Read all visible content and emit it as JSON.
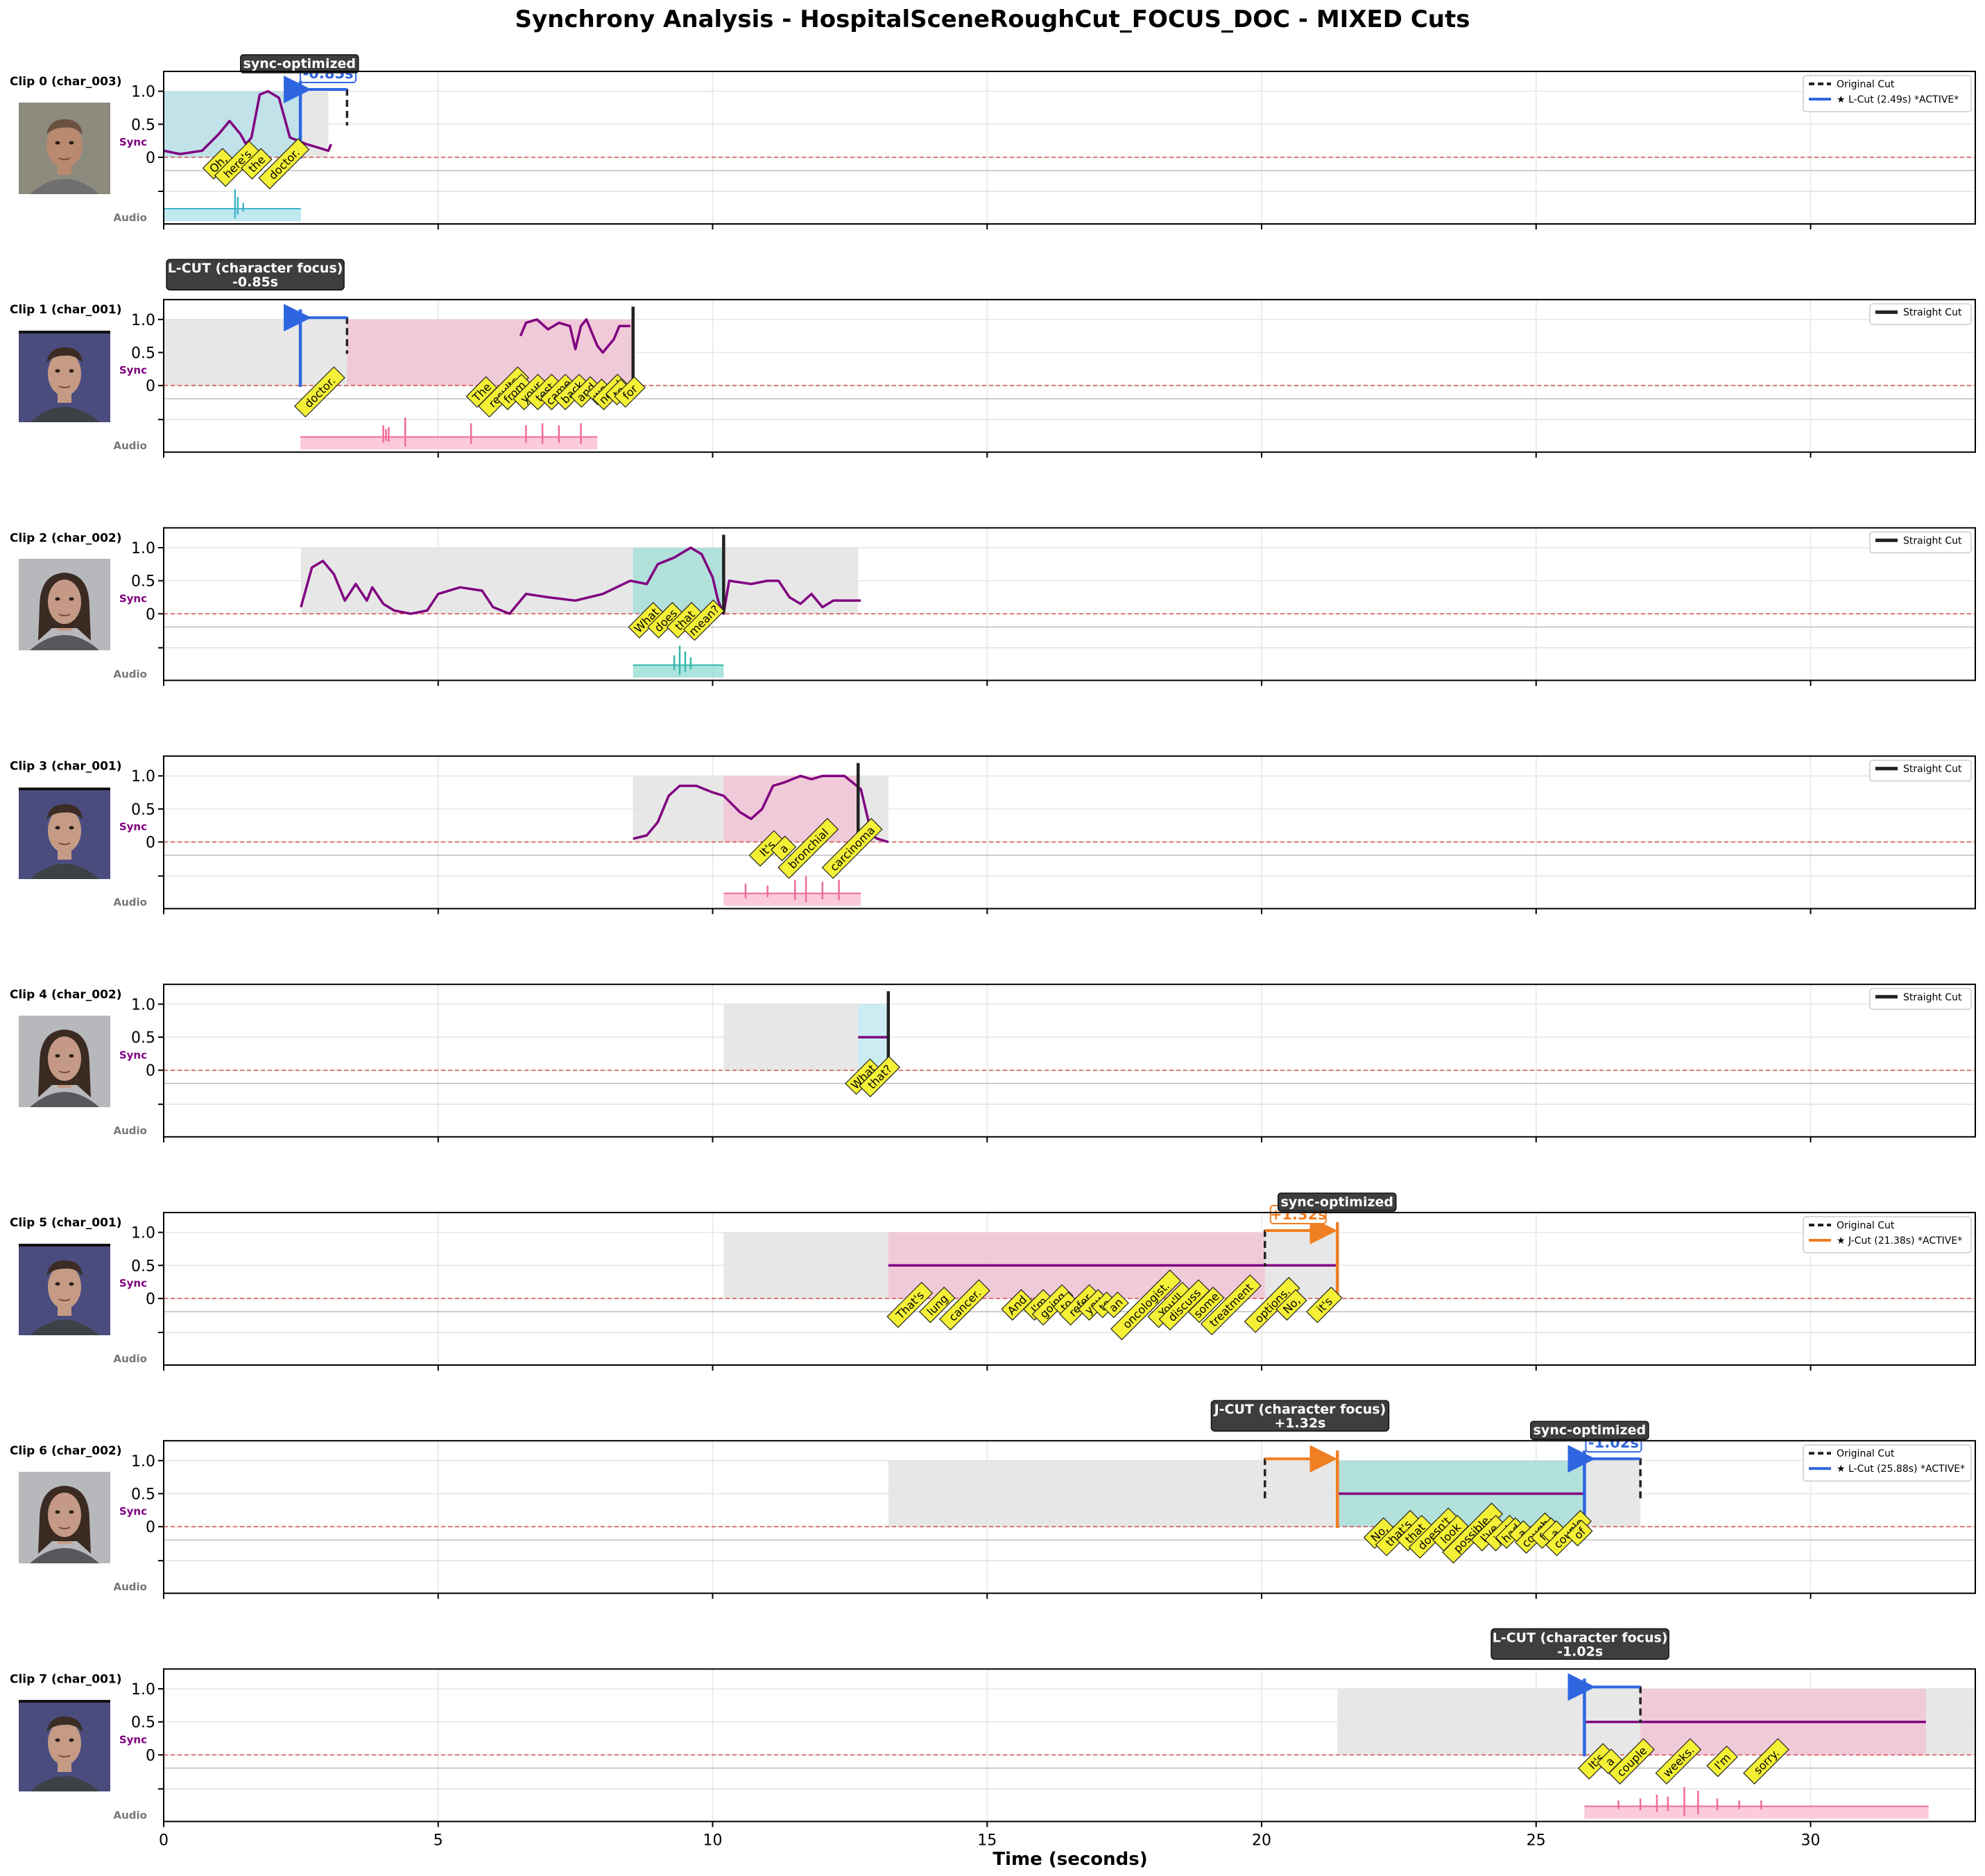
{
  "title": "Synchrony Analysis - HospitalSceneRoughCut_FOCUS_DOC - MIXED Cuts",
  "colors": {
    "sync_line": "#800080",
    "zero_line": "#d62728",
    "cyan_fill": "#a9e0ea",
    "teal_fill": "#8fdcd3",
    "pink_fill": "#f9b8d0",
    "gray_fill": "#e3e3e3",
    "lcut_blue": "#2f66e0",
    "jcut_orange": "#f07f24",
    "cut_black": "#222222",
    "word_fill": "#f4f036",
    "annot_bg": "#3e3e3e"
  },
  "chart_data": {
    "type": "line",
    "xlabel": "Time (seconds)",
    "xlim": [
      0,
      33
    ],
    "x_ticks": [
      0,
      5,
      10,
      15,
      20,
      25,
      30
    ],
    "sync_ylim": [
      -0.2,
      1.3
    ],
    "sync_yticks": [
      "0",
      "0.5",
      "1.0"
    ],
    "sync_tick_values": [
      0,
      0.5,
      1.0
    ],
    "row_label_sync": "Sync",
    "row_label_audio": "Audio",
    "clips": [
      {
        "label": "Clip 0 (char_003)",
        "face": "man",
        "gray_range": [
          0,
          3.0
        ],
        "speech_range": [
          0,
          2.5
        ],
        "speech_color": "cyan",
        "audio_range": [
          0,
          2.5
        ],
        "audio_color": "cyan",
        "audio_spikes": [
          [
            1.3,
            1.0
          ],
          [
            1.35,
            0.6
          ],
          [
            1.45,
            0.3
          ]
        ],
        "sync_curve": [
          [
            0,
            0.1
          ],
          [
            0.3,
            0.05
          ],
          [
            0.7,
            0.1
          ],
          [
            1.0,
            0.35
          ],
          [
            1.2,
            0.55
          ],
          [
            1.4,
            0.35
          ],
          [
            1.5,
            0.2
          ],
          [
            1.6,
            0.3
          ],
          [
            1.75,
            0.95
          ],
          [
            1.9,
            1.0
          ],
          [
            2.1,
            0.9
          ],
          [
            2.3,
            0.3
          ],
          [
            2.6,
            0.2
          ],
          [
            2.8,
            0.15
          ],
          [
            3.0,
            0.1
          ],
          [
            3.05,
            0.2
          ]
        ],
        "cuts": [
          {
            "kind": "original",
            "t": 3.34
          },
          {
            "kind": "lcut",
            "t": 2.49
          }
        ],
        "shift_label": "-0.85s",
        "shift_dir": "left",
        "sync_badge": "sync-optimized",
        "above_box": null,
        "legend": [
          "Original Cut",
          "★ L-Cut (2.49s) *ACTIVE*"
        ],
        "words": [
          [
            "Oh,",
            1.0
          ],
          [
            "here's",
            1.35
          ],
          [
            "the",
            1.7
          ],
          [
            "doctor.",
            2.2
          ]
        ]
      },
      {
        "label": "Clip 1 (char_001)",
        "face": "young-man",
        "gray_range": [
          0,
          8.55
        ],
        "speech_range": [
          3.34,
          8.55
        ],
        "speech_color": "pink",
        "audio_range": [
          2.49,
          7.9
        ],
        "audio_color": "pink",
        "audio_spikes": [
          [
            4.0,
            0.6
          ],
          [
            4.05,
            0.4
          ],
          [
            4.1,
            0.5
          ],
          [
            4.4,
            1.0
          ],
          [
            5.6,
            0.7
          ],
          [
            6.6,
            0.6
          ],
          [
            6.9,
            0.7
          ],
          [
            7.2,
            0.6
          ],
          [
            7.6,
            0.7
          ]
        ],
        "sync_curve": [
          [
            6.5,
            0.75
          ],
          [
            6.6,
            0.95
          ],
          [
            6.8,
            1.0
          ],
          [
            7.0,
            0.85
          ],
          [
            7.2,
            0.95
          ],
          [
            7.4,
            0.9
          ],
          [
            7.5,
            0.55
          ],
          [
            7.6,
            0.9
          ],
          [
            7.7,
            1.0
          ],
          [
            7.9,
            0.6
          ],
          [
            8.0,
            0.5
          ],
          [
            8.2,
            0.7
          ],
          [
            8.3,
            0.9
          ],
          [
            8.5,
            0.9
          ]
        ],
        "cuts": [
          {
            "kind": "lcut",
            "t": 2.49
          },
          {
            "kind": "original",
            "t": 3.34
          },
          {
            "kind": "straight",
            "t": 8.55
          }
        ],
        "shift_label": null,
        "sync_badge": null,
        "above_box": {
          "line1": "L-CUT (character focus)",
          "line2": "-0.85s",
          "t": 2.49
        },
        "legend": [
          "Straight Cut"
        ],
        "words": [
          [
            "doctor.",
            2.85
          ],
          [
            "The",
            5.8
          ],
          [
            "results",
            6.2
          ],
          [
            "from",
            6.4
          ],
          [
            "your",
            6.7
          ],
          [
            "test",
            6.95
          ],
          [
            "came",
            7.2
          ],
          [
            "back",
            7.45
          ],
          [
            "and",
            7.7
          ],
          [
            "we",
            7.95
          ],
          [
            "need",
            8.15
          ],
          [
            "to",
            8.3
          ],
          [
            "for",
            8.5
          ]
        ]
      },
      {
        "label": "Clip 2 (char_002)",
        "face": "woman",
        "gray_range": [
          2.5,
          12.65
        ],
        "speech_range": [
          8.55,
          10.2
        ],
        "speech_color": "teal",
        "audio_range": [
          8.55,
          10.2
        ],
        "audio_color": "teal",
        "audio_spikes": [
          [
            9.3,
            0.5
          ],
          [
            9.4,
            1.0
          ],
          [
            9.5,
            0.7
          ],
          [
            9.6,
            0.4
          ]
        ],
        "sync_curve": [
          [
            2.5,
            0.1
          ],
          [
            2.7,
            0.7
          ],
          [
            2.9,
            0.8
          ],
          [
            3.1,
            0.6
          ],
          [
            3.3,
            0.2
          ],
          [
            3.5,
            0.45
          ],
          [
            3.7,
            0.2
          ],
          [
            3.8,
            0.4
          ],
          [
            4.0,
            0.15
          ],
          [
            4.2,
            0.05
          ],
          [
            4.5,
            0.0
          ],
          [
            4.8,
            0.05
          ],
          [
            5.0,
            0.3
          ],
          [
            5.4,
            0.4
          ],
          [
            5.8,
            0.35
          ],
          [
            6.0,
            0.1
          ],
          [
            6.3,
            0.0
          ],
          [
            6.6,
            0.3
          ],
          [
            7.0,
            0.25
          ],
          [
            7.5,
            0.2
          ],
          [
            8.0,
            0.3
          ],
          [
            8.5,
            0.5
          ],
          [
            8.8,
            0.45
          ],
          [
            9.0,
            0.75
          ],
          [
            9.3,
            0.85
          ],
          [
            9.6,
            1.0
          ],
          [
            9.8,
            0.9
          ],
          [
            10.0,
            0.55
          ],
          [
            10.1,
            0.2
          ],
          [
            10.2,
            0.0
          ],
          [
            10.3,
            0.5
          ],
          [
            10.7,
            0.45
          ],
          [
            11.0,
            0.5
          ],
          [
            11.2,
            0.5
          ],
          [
            11.4,
            0.25
          ],
          [
            11.6,
            0.15
          ],
          [
            11.8,
            0.3
          ],
          [
            12.0,
            0.1
          ],
          [
            12.2,
            0.2
          ],
          [
            12.5,
            0.2
          ],
          [
            12.7,
            0.2
          ]
        ],
        "cuts": [
          {
            "kind": "straight",
            "t": 10.2
          }
        ],
        "shift_label": null,
        "sync_badge": null,
        "above_box": null,
        "legend": [
          "Straight Cut"
        ],
        "words": [
          [
            "What",
            8.8
          ],
          [
            "does",
            9.15
          ],
          [
            "that",
            9.5
          ],
          [
            "mean?",
            9.85
          ]
        ]
      },
      {
        "label": "Clip 3 (char_001)",
        "face": "young-man",
        "gray_range": [
          8.55,
          13.2
        ],
        "speech_range": [
          10.2,
          12.65
        ],
        "speech_color": "pink",
        "audio_range": [
          10.2,
          12.7
        ],
        "audio_color": "pink",
        "audio_spikes": [
          [
            10.6,
            0.5
          ],
          [
            11.0,
            0.4
          ],
          [
            11.5,
            0.7
          ],
          [
            11.7,
            0.9
          ],
          [
            12.0,
            0.6
          ],
          [
            12.3,
            0.7
          ]
        ],
        "sync_curve": [
          [
            8.55,
            0.05
          ],
          [
            8.8,
            0.1
          ],
          [
            9.0,
            0.3
          ],
          [
            9.2,
            0.7
          ],
          [
            9.4,
            0.85
          ],
          [
            9.7,
            0.85
          ],
          [
            10.0,
            0.75
          ],
          [
            10.2,
            0.7
          ],
          [
            10.5,
            0.45
          ],
          [
            10.7,
            0.35
          ],
          [
            10.9,
            0.5
          ],
          [
            11.1,
            0.85
          ],
          [
            11.3,
            0.9
          ],
          [
            11.6,
            1.0
          ],
          [
            11.8,
            0.95
          ],
          [
            12.0,
            1.0
          ],
          [
            12.4,
            1.0
          ],
          [
            12.7,
            0.8
          ],
          [
            12.9,
            0.1
          ],
          [
            13.0,
            0.05
          ],
          [
            13.2,
            0.0
          ]
        ],
        "cuts": [
          {
            "kind": "straight",
            "t": 12.65
          }
        ],
        "shift_label": null,
        "sync_badge": null,
        "above_box": null,
        "legend": [
          "Straight Cut"
        ],
        "words": [
          [
            "It's",
            11.0
          ],
          [
            "a",
            11.3
          ],
          [
            "bronchial",
            11.75
          ],
          [
            "carcinoma",
            12.55
          ]
        ]
      },
      {
        "label": "Clip 4 (char_002)",
        "face": "woman",
        "gray_range": [
          10.2,
          12.65
        ],
        "speech_range": [
          12.65,
          13.2
        ],
        "speech_color": "cyan",
        "audio_range": null,
        "audio_color": null,
        "audio_spikes": [],
        "sync_curve": [
          [
            12.65,
            0.5
          ],
          [
            13.2,
            0.5
          ]
        ],
        "cuts": [
          {
            "kind": "straight",
            "t": 13.2
          }
        ],
        "shift_label": null,
        "sync_badge": null,
        "above_box": null,
        "legend": [
          "Straight Cut"
        ],
        "words": [
          [
            "What",
            12.75
          ],
          [
            "that?",
            13.05
          ]
        ]
      },
      {
        "label": "Clip 5 (char_001)",
        "face": "young-man",
        "gray_range": [
          10.2,
          21.38
        ],
        "speech_range": [
          13.2,
          20.06
        ],
        "speech_color": "pink",
        "audio_range": null,
        "audio_color": null,
        "audio_spikes": [],
        "sync_curve": [
          [
            13.2,
            0.5
          ],
          [
            21.38,
            0.5
          ]
        ],
        "cuts": [
          {
            "kind": "original",
            "t": 20.06
          },
          {
            "kind": "jcut",
            "t": 21.38
          }
        ],
        "shift_label": "+1.32s",
        "shift_dir": "right",
        "sync_badge": "sync-optimized",
        "above_box": null,
        "legend": [
          "Original Cut",
          "★ J-Cut (21.38s) *ACTIVE*"
        ],
        "words": [
          [
            "That's",
            13.6
          ],
          [
            "lung",
            14.1
          ],
          [
            "cancer.",
            14.6
          ],
          [
            "And",
            15.55
          ],
          [
            "I'm",
            15.95
          ],
          [
            "going",
            16.2
          ],
          [
            "to",
            16.45
          ],
          [
            "refer",
            16.7
          ],
          [
            "you",
            16.95
          ],
          [
            "to",
            17.15
          ],
          [
            "an",
            17.35
          ],
          [
            "oncologist.",
            17.9
          ],
          [
            "You'll",
            18.35
          ],
          [
            "discuss",
            18.6
          ],
          [
            "some",
            19.0
          ],
          [
            "treatment",
            19.45
          ],
          [
            "options.",
            20.2
          ],
          [
            "No,",
            20.55
          ],
          [
            "it's",
            21.15
          ]
        ]
      },
      {
        "label": "Clip 6 (char_002)",
        "face": "woman",
        "gray_range": [
          13.2,
          26.9
        ],
        "speech_range": [
          21.38,
          25.88
        ],
        "speech_color": "teal",
        "audio_range": null,
        "audio_color": null,
        "audio_spikes": [],
        "sync_curve": [
          [
            21.38,
            0.5
          ],
          [
            25.88,
            0.5
          ]
        ],
        "cuts": [
          {
            "kind": "original",
            "t": 20.06
          },
          {
            "kind": "jcut",
            "t": 21.38
          },
          {
            "kind": "lcut",
            "t": 25.88
          },
          {
            "kind": "original",
            "t": 26.9
          }
        ],
        "shift_label": "-1.02s",
        "shift_dir": "left",
        "sync_badge": "sync-optimized",
        "above_box": {
          "line1": "J-CUT (character focus)",
          "line2": "+1.32s",
          "t": 20.7
        },
        "legend": [
          "Original Cut",
          "★ L-Cut (25.88s) *ACTIVE*"
        ],
        "words": [
          [
            "No,",
            22.15
          ],
          [
            "that's",
            22.5
          ],
          [
            "that",
            22.8
          ],
          [
            "doesn't",
            23.15
          ],
          [
            "look",
            23.45
          ],
          [
            "possible.",
            23.85
          ],
          [
            "I've",
            24.15
          ],
          [
            "just",
            24.4
          ],
          [
            "had",
            24.55
          ],
          [
            "a",
            24.75
          ],
          [
            "cough",
            25.0
          ],
          [
            "for",
            25.2
          ],
          [
            "a",
            25.35
          ],
          [
            "couple",
            25.6
          ],
          [
            "of",
            25.8
          ]
        ]
      },
      {
        "label": "Clip 7 (char_001)",
        "face": "young-man",
        "gray_range": [
          21.38,
          33.0
        ],
        "speech_range": [
          26.9,
          32.1
        ],
        "speech_color": "pink",
        "audio_range": [
          25.88,
          32.15
        ],
        "audio_color": "pink",
        "audio_spikes": [
          [
            26.5,
            0.3
          ],
          [
            26.9,
            0.4
          ],
          [
            27.2,
            0.6
          ],
          [
            27.4,
            0.5
          ],
          [
            27.7,
            1.0
          ],
          [
            27.95,
            0.8
          ],
          [
            28.3,
            0.4
          ],
          [
            28.7,
            0.3
          ],
          [
            29.1,
            0.3
          ]
        ],
        "sync_curve": [
          [
            25.88,
            0.5
          ],
          [
            32.1,
            0.5
          ]
        ],
        "cuts": [
          {
            "kind": "lcut",
            "t": 25.88
          },
          {
            "kind": "original",
            "t": 26.9
          }
        ],
        "shift_label": null,
        "sync_badge": null,
        "above_box": {
          "line1": "L-CUT (character focus)",
          "line2": "-1.02s",
          "t": 25.8
        },
        "legend": null,
        "words": [
          [
            "It's",
            26.1
          ],
          [
            "a",
            26.35
          ],
          [
            "couple",
            26.75
          ],
          [
            "weeks.",
            27.6
          ],
          [
            "I'm",
            28.4
          ],
          [
            "sorry.",
            29.2
          ]
        ]
      }
    ]
  }
}
